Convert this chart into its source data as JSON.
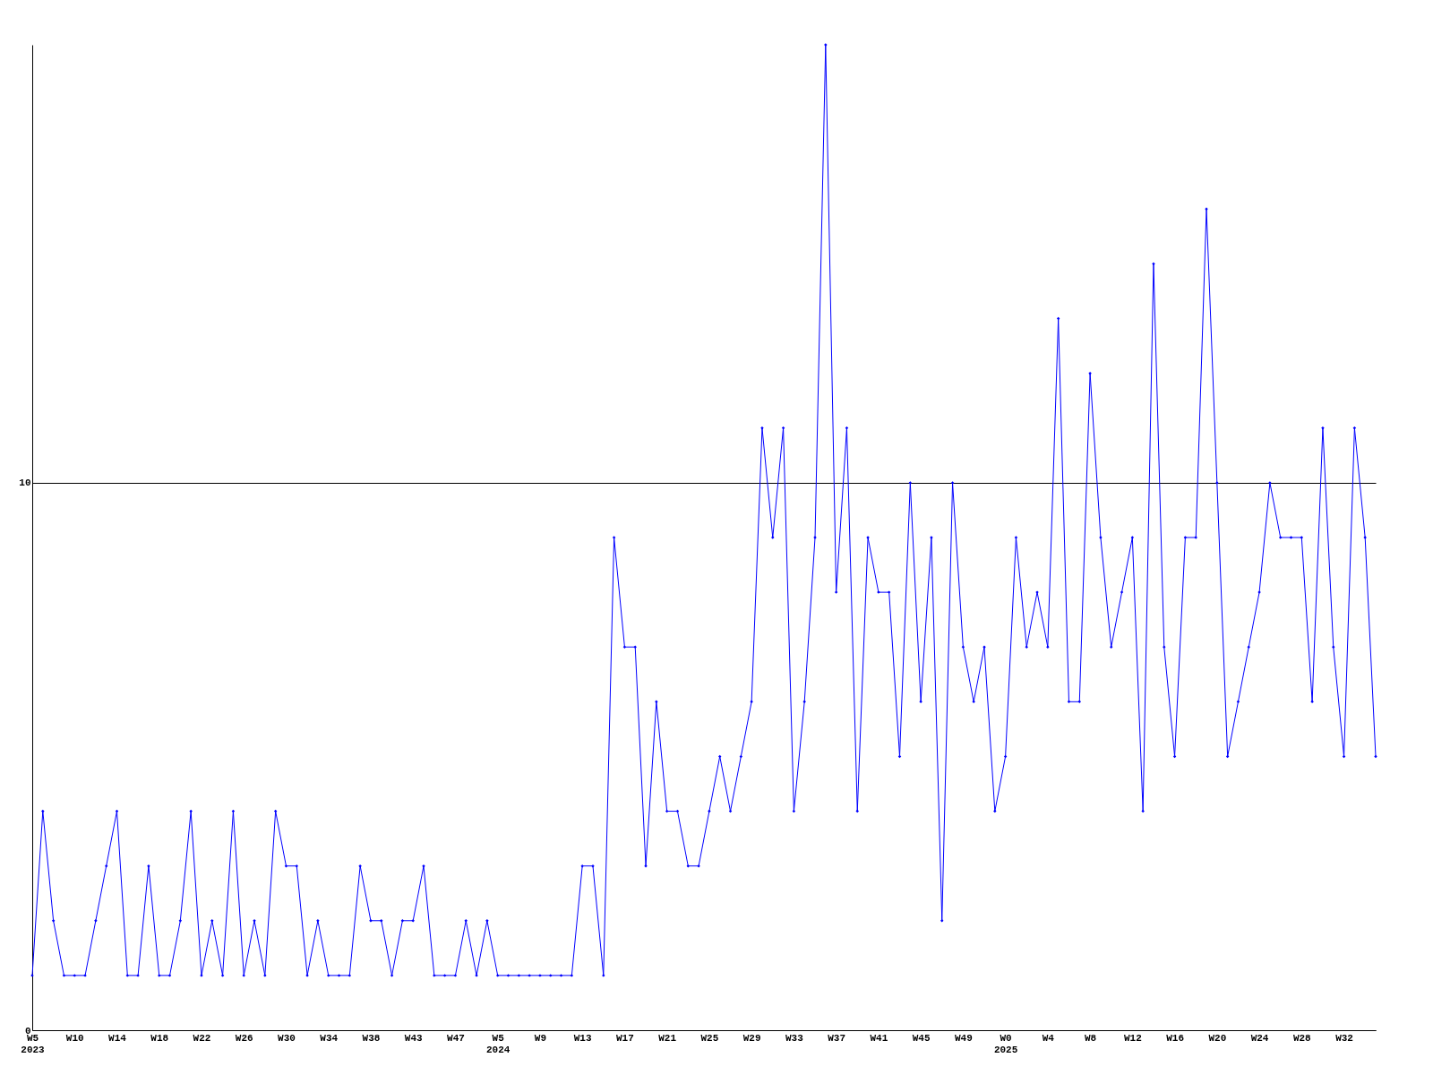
{
  "chart_data": {
    "type": "line",
    "categories": [
      "W5 2023",
      null,
      null,
      null,
      "W10",
      null,
      null,
      null,
      "W14",
      null,
      null,
      null,
      "W18",
      null,
      null,
      null,
      "W22",
      null,
      null,
      null,
      "W26",
      null,
      null,
      null,
      "W30",
      null,
      null,
      null,
      "W34",
      null,
      null,
      null,
      "W38",
      null,
      null,
      null,
      "W43",
      null,
      null,
      null,
      "W47",
      null,
      null,
      null,
      "W5 2024",
      null,
      null,
      null,
      "W9",
      null,
      null,
      null,
      "W13",
      null,
      null,
      null,
      "W17",
      null,
      null,
      null,
      "W21",
      null,
      null,
      null,
      "W25",
      null,
      null,
      null,
      "W29",
      null,
      null,
      null,
      "W33",
      null,
      null,
      null,
      "W37",
      null,
      null,
      null,
      "W41",
      null,
      null,
      null,
      "W45",
      null,
      null,
      null,
      "W49",
      null,
      null,
      null,
      "W0 2025",
      null,
      null,
      null,
      "W4",
      null,
      null,
      null,
      "W8",
      null,
      null,
      null,
      "W12",
      null,
      null,
      null,
      "W16",
      null,
      null,
      null,
      "W20",
      null,
      null,
      null,
      "W24",
      null,
      null,
      null,
      "W28",
      null,
      null,
      null,
      "W32",
      null,
      null,
      null
    ],
    "series": [
      {
        "color": "#0000ff",
        "values": [
          1,
          4,
          2,
          1,
          1,
          1,
          2,
          3,
          4,
          1,
          1,
          3,
          1,
          1,
          2,
          4,
          1,
          2,
          1,
          4,
          1,
          2,
          1,
          4,
          3,
          3,
          1,
          2,
          1,
          1,
          1,
          3,
          2,
          2,
          1,
          2,
          2,
          3,
          1,
          1,
          1,
          2,
          1,
          2,
          1,
          1,
          1,
          1,
          1,
          1,
          1,
          1,
          3,
          3,
          1,
          9,
          7,
          7,
          3,
          6,
          4,
          4,
          3,
          3,
          4,
          5,
          4,
          5,
          6,
          11,
          9,
          11,
          4,
          6,
          9,
          18,
          8,
          11,
          4,
          9,
          8,
          8,
          5,
          10,
          6,
          9,
          2,
          10,
          7,
          6,
          7,
          4,
          5,
          9,
          7,
          8,
          7,
          13,
          6,
          6,
          12,
          9,
          7,
          8,
          9,
          4,
          14,
          7,
          5,
          9,
          9,
          15,
          10,
          5,
          6,
          7,
          8,
          10,
          9,
          9,
          9,
          6,
          11,
          7,
          5,
          11,
          9,
          5
        ]
      }
    ],
    "ylim": [
      0,
      18
    ],
    "yticks": [
      0,
      10
    ],
    "grid": "y",
    "marker": "diamond",
    "line_style": "solid"
  }
}
